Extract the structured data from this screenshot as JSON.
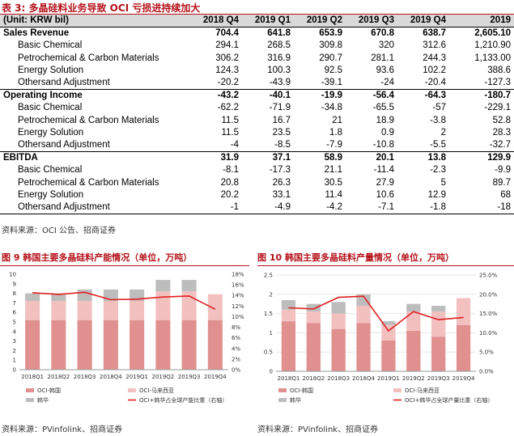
{
  "table": {
    "title": "表 3: 多晶硅料业务导致 OCI 亏损进持续加大",
    "header": [
      "(Unit: KRW bil)",
      "2018 Q4",
      "2019 Q1",
      "2019 Q2",
      "2019 Q3",
      "2019 Q4",
      "2019"
    ],
    "rows": [
      {
        "kind": "sec",
        "label": "Sales Revenue",
        "values": [
          "704.4",
          "641.8",
          "653.9",
          "670.8",
          "638.7",
          "2,605.10"
        ]
      },
      {
        "kind": "sub",
        "label": "Basic Chemical",
        "values": [
          "294.1",
          "268.5",
          "309.8",
          "320",
          "312.6",
          "1,210.90"
        ]
      },
      {
        "kind": "sub",
        "label": "Petrochemical & Carbon Materials",
        "values": [
          "306.2",
          "316.9",
          "290.7",
          "281.1",
          "244.3",
          "1,133.00"
        ]
      },
      {
        "kind": "sub",
        "label": "Energy Solution",
        "values": [
          "124.3",
          "100.3",
          "92.5",
          "93.6",
          "102.2",
          "388.6"
        ]
      },
      {
        "kind": "sub",
        "label": "Othersand Adjustment",
        "values": [
          "-20.2",
          "-43.9",
          "-39.1",
          "-24",
          "-20.4",
          "-127.3"
        ]
      },
      {
        "kind": "sec",
        "label": "Operating Income",
        "values": [
          "-43.2",
          "-40.1",
          "-19.9",
          "-56.4",
          "-64.3",
          "-180.7"
        ]
      },
      {
        "kind": "sub",
        "label": "Basic Chemical",
        "values": [
          "-62.2",
          "-71.9",
          "-34.8",
          "-65.5",
          "-57",
          "-229.1"
        ]
      },
      {
        "kind": "sub",
        "label": "Petrochemical & Carbon Materials",
        "values": [
          "11.5",
          "16.7",
          "21",
          "18.9",
          "-3.8",
          "52.8"
        ]
      },
      {
        "kind": "sub",
        "label": "Energy Solution",
        "values": [
          "11.5",
          "23.5",
          "1.8",
          "0.9",
          "2",
          "28.3"
        ]
      },
      {
        "kind": "sub",
        "label": "Othersand Adjustment",
        "values": [
          "-4",
          "-8.5",
          "-7.9",
          "-10.8",
          "-5.5",
          "-32.7"
        ]
      },
      {
        "kind": "sec",
        "label": "EBITDA",
        "values": [
          "31.9",
          "37.1",
          "58.9",
          "20.1",
          "13.8",
          "129.9"
        ]
      },
      {
        "kind": "sub",
        "label": "Basic Chemical",
        "values": [
          "-8.1",
          "-17.3",
          "21.1",
          "-11.4",
          "-2.3",
          "-9.9"
        ]
      },
      {
        "kind": "sub",
        "label": "Petrochemical & Carbon Materials",
        "values": [
          "20.8",
          "26.3",
          "30.5",
          "27.9",
          "5",
          "89.7"
        ]
      },
      {
        "kind": "sub",
        "label": "Energy Solution",
        "values": [
          "20.2",
          "33.1",
          "11.4",
          "10.6",
          "12.9",
          "68"
        ]
      },
      {
        "kind": "sub",
        "label": "Othersand Adjustment",
        "values": [
          "-1",
          "-4.9",
          "-4.2",
          "-7.1",
          "-1.8",
          "-18"
        ]
      }
    ],
    "source": "资料来源：OCI 公告、招商证券"
  },
  "colors": {
    "accent": "#b5121b",
    "korea": "#e0908f",
    "malaysia": "#f3c0c0",
    "hanwha": "#bdbdbd",
    "line": "#e02020"
  },
  "chart_data": [
    {
      "type": "bar",
      "title": "图 9  韩国主要多晶硅料产能情况（单位，万吨）",
      "categories": [
        "2018Q1",
        "2018Q2",
        "2018Q3",
        "2018Q4",
        "2019Q1",
        "2019Q2",
        "2019Q3",
        "2019Q4"
      ],
      "stacked": true,
      "series": [
        {
          "name": "OCI-韩国",
          "values": [
            5.2,
            5.2,
            5.2,
            5.2,
            5.2,
            5.2,
            5.2,
            5.2
          ]
        },
        {
          "name": "OCI-马来西亚",
          "values": [
            2.0,
            2.0,
            2.0,
            2.0,
            2.0,
            3.0,
            3.0,
            2.7
          ]
        },
        {
          "name": "韩华",
          "values": [
            0.8,
            0.8,
            1.2,
            1.2,
            1.2,
            1.2,
            1.2,
            0
          ]
        }
      ],
      "line": {
        "name": "OCI+韩华占全球产能比重（右轴）",
        "values": [
          14.5,
          14.2,
          14.6,
          13.2,
          13.3,
          13.7,
          13.9,
          11.4
        ]
      },
      "ylim": [
        0,
        10
      ],
      "yticks": [
        "0",
        "1",
        "2",
        "3",
        "4",
        "5",
        "6",
        "7",
        "8",
        "9",
        "10"
      ],
      "y2lim": [
        0,
        18
      ],
      "y2ticks": [
        "0%",
        "2%",
        "4%",
        "6%",
        "8%",
        "10%",
        "12%",
        "14%",
        "16%",
        "18%"
      ],
      "grid": false,
      "legend": "bottom",
      "source": "资料来源：PVinfolink、招商证券"
    },
    {
      "type": "bar",
      "title": "图 10  韩国主要多晶硅料产量情况（单位，万吨）",
      "categories": [
        "2018Q1",
        "2018Q2",
        "2018Q3",
        "2018Q4",
        "2019Q1",
        "2019Q2",
        "2019Q3",
        "2019Q4"
      ],
      "stacked": true,
      "series": [
        {
          "name": "OCI-韩国",
          "values": [
            1.3,
            1.25,
            1.1,
            1.25,
            0.8,
            1.05,
            0.9,
            1.2
          ]
        },
        {
          "name": "OCI-马来西亚",
          "values": [
            0.3,
            0.3,
            0.4,
            0.45,
            0.4,
            0.5,
            0.65,
            0.7
          ]
        },
        {
          "name": "韩华",
          "values": [
            0.25,
            0.2,
            0.3,
            0.3,
            0.1,
            0.2,
            0.15,
            0
          ]
        }
      ],
      "line": {
        "name": "OCI+韩华占全球产量比重（右轴）",
        "values": [
          16.5,
          16.2,
          19.2,
          19.5,
          10.5,
          15.5,
          13.4,
          14.0
        ]
      },
      "ylim": [
        0,
        2.5
      ],
      "yticks": [
        "0",
        "0.5",
        "1",
        "1.5",
        "2",
        "2.5"
      ],
      "y2lim": [
        0,
        25
      ],
      "y2ticks": [
        "0.0%",
        "5.0%",
        "10.0%",
        "15.0%",
        "20.0%",
        "25.0%"
      ],
      "grid": true,
      "legend": "bottom",
      "source": "资料来源：PVinfolink、招商证券"
    }
  ]
}
